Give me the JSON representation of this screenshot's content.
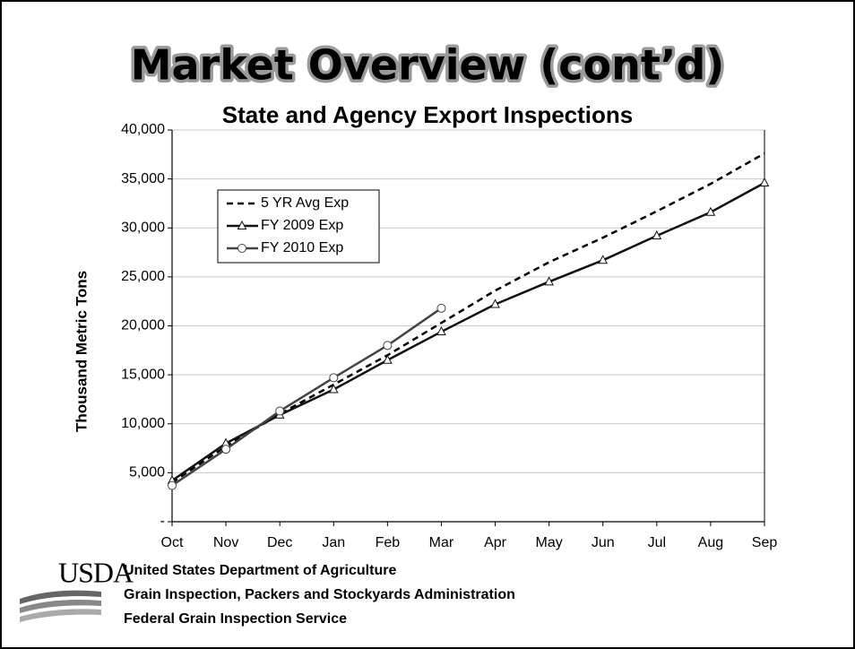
{
  "slide_title": "Market Overview (cont’d)",
  "chart_data": {
    "type": "line",
    "title": "State and Agency Export Inspections",
    "ylabel": "Thousand Metric Tons",
    "categories": [
      "Oct",
      "Nov",
      "Dec",
      "Jan",
      "Feb",
      "Mar",
      "Apr",
      "May",
      "Jun",
      "Jul",
      "Aug",
      "Sep"
    ],
    "series": [
      {
        "name": "5 YR Avg Exp",
        "color": "#000000",
        "dash": true,
        "marker": null,
        "values": [
          4000,
          7700,
          11000,
          14000,
          17000,
          20300,
          23600,
          26500,
          29000,
          31700,
          34500,
          37600
        ]
      },
      {
        "name": "FY 2009 Exp",
        "color": "#111111",
        "dash": false,
        "marker": "triangle",
        "values": [
          4200,
          8000,
          10900,
          13500,
          16500,
          19400,
          22200,
          24500,
          26700,
          29200,
          31600,
          34600
        ]
      },
      {
        "name": "FY 2010 Exp",
        "color": "#444444",
        "dash": false,
        "marker": "circle",
        "values": [
          3700,
          7400,
          11300,
          14700,
          18000,
          21800,
          null,
          null,
          null,
          null,
          null,
          null
        ]
      }
    ],
    "ylim": [
      0,
      40000
    ],
    "yticks": [
      {
        "value": 0,
        "label": "-"
      },
      {
        "value": 5000,
        "label": "5,000"
      },
      {
        "value": 10000,
        "label": "10,000"
      },
      {
        "value": 15000,
        "label": "15,000"
      },
      {
        "value": 20000,
        "label": "20,000"
      },
      {
        "value": 25000,
        "label": "25,000"
      },
      {
        "value": 30000,
        "label": "30,000"
      },
      {
        "value": 35000,
        "label": "35,000"
      },
      {
        "value": 40000,
        "label": "40,000"
      }
    ],
    "grid": true,
    "legend": "upper left"
  },
  "footer": {
    "logo": "USDA",
    "lines": [
      "United States Department of Agriculture",
      "Grain Inspection, Packers and Stockyards Administration",
      "Federal Grain Inspection Service"
    ]
  }
}
